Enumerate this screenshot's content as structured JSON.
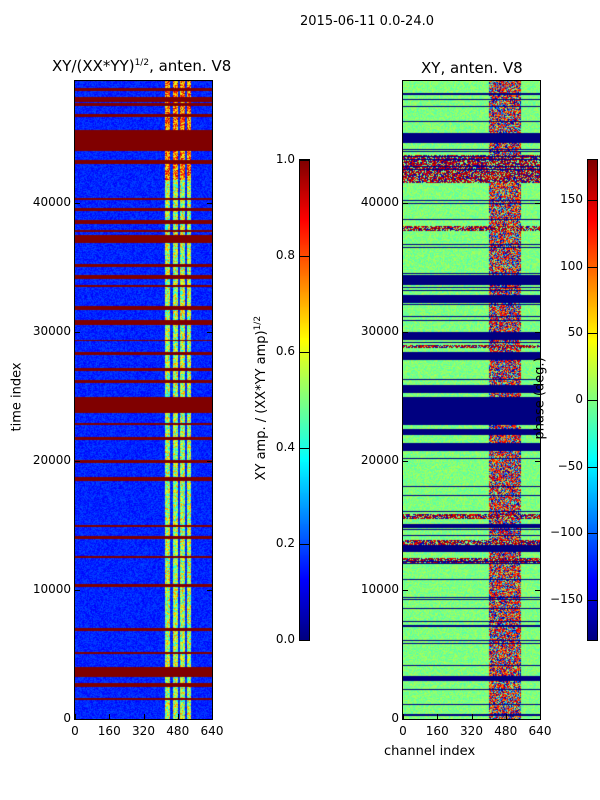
{
  "suptitle": "2015-06-11 0.0-24.0",
  "chart_data": [
    {
      "type": "heatmap",
      "title": "XY/(XX*YY)",
      "title_exponent": "1/2",
      "title_suffix": ", anten. V8",
      "xlabel": "",
      "ylabel": "time index",
      "xlim": [
        0,
        640
      ],
      "ylim": [
        0,
        49536
      ],
      "xticks": [
        "0",
        "160",
        "320",
        "480",
        "640"
      ],
      "yticks": [
        "0",
        "10000",
        "20000",
        "30000",
        "40000"
      ],
      "colorbar": {
        "label": "XY amp. / (XX*YY amp)",
        "label_exponent": "1/2",
        "range": [
          0,
          1
        ],
        "ticks": [
          "0.0",
          "0.2",
          "0.4",
          "0.6",
          "0.8",
          "1.0"
        ],
        "colormap": "jet"
      }
    },
    {
      "type": "heatmap",
      "title": "XY, anten. V8",
      "xlabel": "channel index",
      "ylabel": "",
      "xlim": [
        0,
        640
      ],
      "ylim": [
        0,
        49536
      ],
      "xticks": [
        "0",
        "160",
        "320",
        "480",
        "640"
      ],
      "yticks": [
        "0",
        "10000",
        "20000",
        "30000",
        "40000"
      ],
      "colorbar": {
        "label": "phase (deg.)",
        "range": [
          -180,
          180
        ],
        "ticks": [
          "−150",
          "−100",
          "−50",
          "0",
          "50",
          "100",
          "150"
        ],
        "colormap": "jet"
      }
    }
  ]
}
